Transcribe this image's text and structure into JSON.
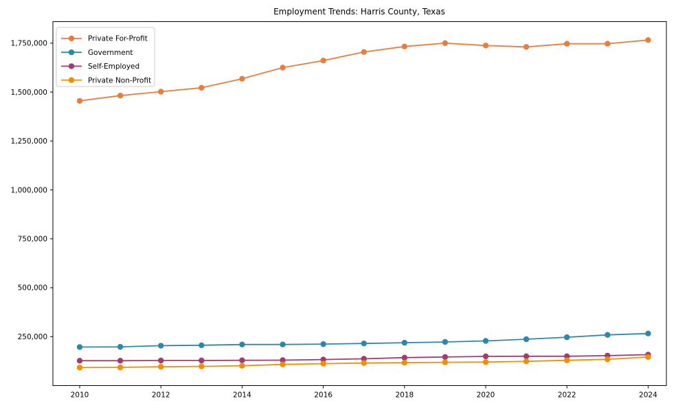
{
  "chart_data": {
    "type": "line",
    "title": "Employment Trends: Harris County, Texas",
    "xlabel": "",
    "ylabel": "",
    "x": [
      2010,
      2011,
      2012,
      2013,
      2014,
      2015,
      2016,
      2017,
      2018,
      2019,
      2020,
      2021,
      2022,
      2023,
      2024
    ],
    "x_ticks": [
      2010,
      2012,
      2014,
      2016,
      2018,
      2020,
      2022,
      2024
    ],
    "x_tick_labels": [
      "2010",
      "2012",
      "2014",
      "2016",
      "2018",
      "2020",
      "2022",
      "2024"
    ],
    "y_ticks": [
      250000,
      500000,
      750000,
      1000000,
      1250000,
      1500000,
      1750000
    ],
    "y_tick_labels": [
      "250,000",
      "500,000",
      "750,000",
      "1,000,000",
      "1,250,000",
      "1,500,000",
      "1,750,000"
    ],
    "xlim": [
      2009.34,
      2024.45
    ],
    "ylim": [
      0,
      1860000
    ],
    "grid": false,
    "legend_position": "upper-left",
    "plot_border_color": "#000000",
    "legend_border_color": "#cccccc",
    "series": [
      {
        "name": "Private For-Profit",
        "color": "#e87d3e",
        "values": [
          1455000,
          1482000,
          1502000,
          1522000,
          1568000,
          1625000,
          1661000,
          1705000,
          1733000,
          1750000,
          1738000,
          1731000,
          1747000,
          1747000,
          1766000
        ]
      },
      {
        "name": "Government",
        "color": "#2e86ab",
        "values": [
          197000,
          198000,
          204000,
          206000,
          210000,
          210000,
          212000,
          215000,
          219000,
          223000,
          228000,
          237000,
          247000,
          259000,
          266000
        ]
      },
      {
        "name": "Self-Employed",
        "color": "#a23b72",
        "values": [
          127000,
          127000,
          128000,
          128000,
          129000,
          130000,
          133000,
          137000,
          143000,
          146000,
          149000,
          150000,
          150000,
          153000,
          158000
        ]
      },
      {
        "name": "Private Non-Profit",
        "color": "#f18f01",
        "values": [
          92000,
          93000,
          96000,
          98000,
          101000,
          108000,
          112000,
          115000,
          117000,
          119000,
          120000,
          124000,
          129000,
          134000,
          146000
        ]
      }
    ]
  }
}
